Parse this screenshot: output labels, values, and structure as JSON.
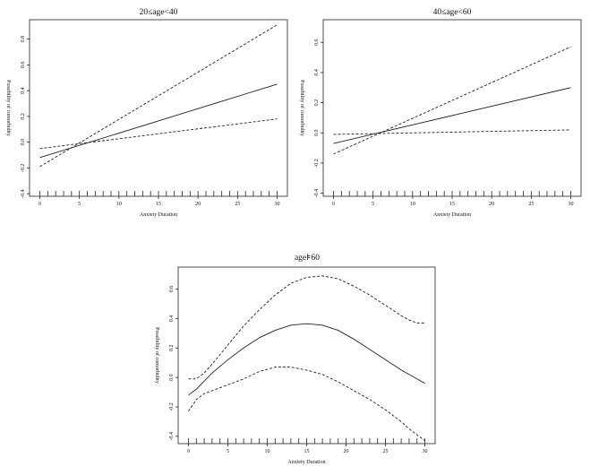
{
  "chart_data": [
    {
      "type": "line",
      "title": "20≤age<40",
      "xlabel": "Anxiety Duration",
      "ylabel": "Possibility of comorbidity",
      "xlim": [
        0,
        30
      ],
      "ylim": [
        -0.42,
        0.95
      ],
      "xticks": [
        0,
        5,
        10,
        15,
        20,
        25,
        30
      ],
      "yticks": [
        -0.4,
        -0.2,
        0.0,
        0.2,
        0.4,
        0.6,
        0.8
      ],
      "xtick_labels": [
        "0",
        "5",
        "10",
        "15",
        "20",
        "25",
        "30"
      ],
      "ytick_labels": [
        "-0.4",
        "-0.2",
        "0.0",
        "0.2",
        "0.4",
        "0.6",
        "0.8"
      ],
      "rug": true,
      "grid": false,
      "series": [
        {
          "style": "solid",
          "x": [
            0,
            30
          ],
          "y": [
            -0.12,
            0.45
          ]
        },
        {
          "style": "dashed",
          "x": [
            0,
            30
          ],
          "y": [
            -0.19,
            0.91
          ]
        },
        {
          "style": "dashed",
          "x": [
            0,
            30
          ],
          "y": [
            -0.05,
            0.18
          ]
        }
      ]
    },
    {
      "type": "line",
      "title": "40≤age<60",
      "xlabel": "Anxiety Duration",
      "ylabel": "Possibility of comorbidity",
      "xlim": [
        0,
        30
      ],
      "ylim": [
        -0.42,
        0.75
      ],
      "xticks": [
        0,
        5,
        10,
        15,
        20,
        25,
        30
      ],
      "yticks": [
        -0.4,
        -0.2,
        0.0,
        0.2,
        0.4,
        0.6
      ],
      "xtick_labels": [
        "0",
        "5",
        "10",
        "15",
        "20",
        "25",
        "30"
      ],
      "ytick_labels": [
        "-0.4",
        "-0.2",
        "0.0",
        "0.2",
        "0.4",
        "0.6"
      ],
      "rug": true,
      "grid": false,
      "series": [
        {
          "style": "solid",
          "x": [
            0,
            30
          ],
          "y": [
            -0.07,
            0.3
          ]
        },
        {
          "style": "dashed",
          "x": [
            0,
            30
          ],
          "y": [
            -0.14,
            0.57
          ]
        },
        {
          "style": "dashed",
          "x": [
            0,
            30
          ],
          "y": [
            -0.01,
            0.02
          ]
        }
      ]
    },
    {
      "type": "line",
      "title": "age⊧60",
      "xlabel": "Anxiety Duration",
      "ylabel": "Possibility of comorbidity",
      "xlim": [
        0,
        30
      ],
      "ylim": [
        -0.45,
        0.75
      ],
      "xticks": [
        0,
        5,
        10,
        15,
        20,
        25,
        30
      ],
      "yticks": [
        -0.4,
        -0.2,
        0.0,
        0.2,
        0.4,
        0.6
      ],
      "xtick_labels": [
        "0",
        "5",
        "10",
        "15",
        "20",
        "25",
        "30"
      ],
      "ytick_labels": [
        "-0.4",
        "-0.2",
        "0.0",
        "0.2",
        "0.4",
        "0.6"
      ],
      "rug": true,
      "grid": false,
      "series": [
        {
          "style": "solid",
          "x": [
            0,
            1,
            3,
            5,
            7,
            9,
            11,
            13,
            15,
            17,
            19,
            21,
            23,
            25,
            27,
            29,
            30
          ],
          "y": [
            -0.12,
            -0.08,
            0.03,
            0.12,
            0.2,
            0.27,
            0.32,
            0.355,
            0.365,
            0.355,
            0.32,
            0.26,
            0.19,
            0.12,
            0.05,
            -0.01,
            -0.04
          ]
        },
        {
          "style": "dashed",
          "x": [
            0,
            1,
            2,
            3,
            5,
            7,
            9,
            11,
            13,
            15,
            17,
            19,
            21,
            23,
            25,
            27,
            28,
            29,
            30
          ],
          "y": [
            -0.01,
            -0.01,
            0.03,
            0.09,
            0.22,
            0.35,
            0.46,
            0.56,
            0.64,
            0.68,
            0.69,
            0.67,
            0.62,
            0.56,
            0.49,
            0.42,
            0.39,
            0.37,
            0.37
          ]
        },
        {
          "style": "dashed",
          "x": [
            0,
            1,
            2,
            3,
            5,
            7,
            9,
            11,
            13,
            15,
            17,
            19,
            21,
            23,
            25,
            27,
            28,
            29,
            30
          ],
          "y": [
            -0.23,
            -0.15,
            -0.11,
            -0.09,
            -0.05,
            -0.01,
            0.04,
            0.07,
            0.07,
            0.05,
            0.02,
            -0.03,
            -0.09,
            -0.15,
            -0.22,
            -0.3,
            -0.35,
            -0.39,
            -0.43
          ]
        }
      ]
    }
  ]
}
